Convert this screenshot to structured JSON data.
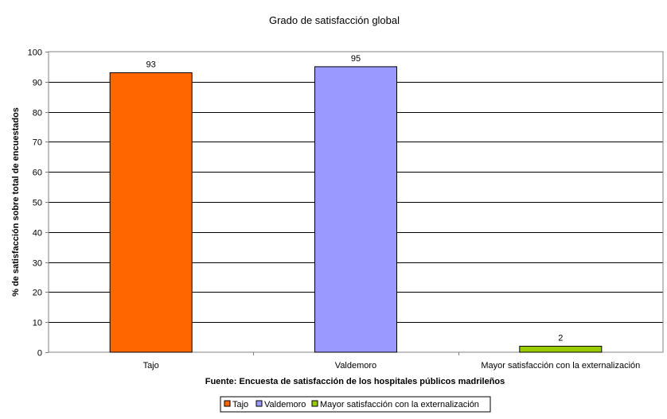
{
  "chart_data": {
    "type": "bar",
    "title": "Grado de satisfacción global",
    "xlabel": "Fuente: Encuesta de satisfacción de los hospitales públicos madrileños",
    "ylabel": "% de satisfacción sobre total de encuestados",
    "ylim": [
      0,
      100
    ],
    "yticks": [
      0,
      10,
      20,
      30,
      40,
      50,
      60,
      70,
      80,
      90,
      100
    ],
    "grid": true,
    "legend_position": "bottom",
    "categories": [
      "Tajo",
      "Valdemoro",
      "Mayor satisfacción con la externalización"
    ],
    "values": [
      93,
      95,
      2
    ],
    "data_labels": [
      "93",
      "95",
      "2"
    ],
    "colors": [
      "#FF6600",
      "#9999FF",
      "#99CC00"
    ],
    "legend": [
      "Tajo",
      "Valdemoro",
      "Mayor satisfacción con la externalización"
    ]
  }
}
